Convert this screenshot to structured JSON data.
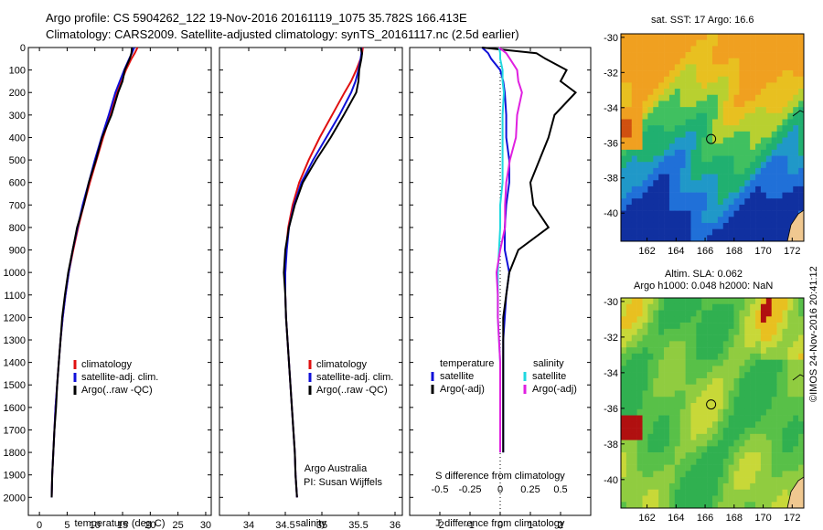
{
  "header": {
    "line1": "Argo profile: CS 5904262_122 19-Nov-2016 20161119_1075 35.782S 166.413E",
    "line2": "Climatology: CARS2009. Satellite-adjusted climatology: synTS_20161117.nc (2.5d earlier)"
  },
  "watermark": "©IMOS 24-Nov-2016 20:41:12",
  "credits": {
    "line1": "Argo Australia",
    "line2": "PI: Susan Wijffels"
  },
  "colors": {
    "climatology": "#e01010",
    "satellite": "#1010d8",
    "argo": "#000000",
    "sal_sat": "#20d8e0",
    "sal_argo": "#e020e0"
  },
  "chart_data": [
    {
      "type": "line",
      "xlabel": "temperature (deg C)",
      "ylabel": "",
      "xlim": [
        -2,
        31
      ],
      "ylim": [
        2080,
        0
      ],
      "y_reversed": true,
      "x_ticks": [
        0,
        5,
        10,
        15,
        20,
        25,
        30
      ],
      "y_ticks": [
        0,
        100,
        200,
        300,
        400,
        500,
        600,
        700,
        800,
        900,
        1000,
        1100,
        1200,
        1300,
        1400,
        1500,
        1600,
        1700,
        1800,
        1900,
        2000
      ],
      "legend": [
        "climatology",
        "satellite-adj. clim.",
        "Argo(..raw -QC)"
      ],
      "legend_position": "center",
      "depth": [
        0,
        25,
        50,
        100,
        150,
        200,
        300,
        400,
        500,
        600,
        700,
        800,
        900,
        1000,
        1100,
        1200,
        1300,
        1400,
        1500,
        1600,
        1700,
        1800,
        1900,
        2000
      ],
      "series": [
        {
          "name": "climatology",
          "color": "#e01010",
          "values": [
            17.7,
            17.2,
            16.6,
            15.6,
            14.8,
            14.0,
            12.8,
            11.5,
            10.3,
            9.1,
            8.0,
            7.0,
            6.1,
            5.3,
            4.7,
            4.2,
            3.8,
            3.5,
            3.2,
            2.9,
            2.7,
            2.5,
            2.3,
            2.2
          ]
        },
        {
          "name": "satellite-adj. clim.",
          "color": "#1010d8",
          "values": [
            17.1,
            16.7,
            16.2,
            15.3,
            14.5,
            13.7,
            12.5,
            11.2,
            10.0,
            8.9,
            7.8,
            6.9,
            6.0,
            5.3,
            4.7,
            4.2,
            3.8,
            3.5,
            3.2,
            2.9,
            2.7,
            2.5,
            2.3,
            2.2
          ]
        },
        {
          "name": "Argo(..raw -QC)",
          "color": "#000000",
          "values": [
            16.7,
            16.6,
            16.3,
            15.4,
            15.0,
            14.2,
            13.0,
            11.3,
            10.2,
            8.9,
            8.0,
            6.8,
            6.0,
            5.2,
            4.6,
            4.1,
            3.8,
            3.5,
            3.2,
            3.0,
            2.7,
            2.5,
            2.3,
            2.2
          ]
        }
      ]
    },
    {
      "type": "line",
      "xlabel": "salinity",
      "ylabel": "",
      "xlim": [
        33.6,
        36.1
      ],
      "ylim": [
        2080,
        0
      ],
      "y_reversed": true,
      "x_ticks": [
        34,
        34.5,
        35,
        35.5,
        36
      ],
      "legend": [
        "climatology",
        "satellite-adj. clim.",
        "Argo(..raw -QC)"
      ],
      "legend_position": "center-right",
      "depth": [
        0,
        25,
        50,
        100,
        150,
        200,
        300,
        400,
        500,
        600,
        700,
        800,
        900,
        1000,
        1100,
        1200,
        1300,
        1400,
        1500,
        1600,
        1700,
        1800,
        1900,
        2000
      ],
      "series": [
        {
          "name": "climatology",
          "color": "#e01010",
          "values": [
            35.56,
            35.55,
            35.53,
            35.47,
            35.4,
            35.31,
            35.14,
            34.97,
            34.82,
            34.69,
            34.6,
            34.54,
            34.51,
            34.5,
            34.5,
            34.51,
            34.53,
            34.55,
            34.57,
            34.59,
            34.61,
            34.63,
            34.64,
            34.66
          ]
        },
        {
          "name": "satellite-adj. clim.",
          "color": "#1010d8",
          "values": [
            35.54,
            35.54,
            35.53,
            35.5,
            35.46,
            35.4,
            35.24,
            35.06,
            34.88,
            34.72,
            34.62,
            34.55,
            34.52,
            34.5,
            34.5,
            34.51,
            34.53,
            34.55,
            34.57,
            34.59,
            34.61,
            34.63,
            34.64,
            34.66
          ]
        },
        {
          "name": "Argo(..raw -QC)",
          "color": "#000000",
          "values": [
            35.53,
            35.55,
            35.54,
            35.51,
            35.5,
            35.47,
            35.3,
            35.12,
            34.92,
            34.74,
            34.63,
            34.55,
            34.5,
            34.48,
            34.5,
            34.51,
            34.53,
            34.55,
            34.57,
            34.59,
            34.61,
            34.63,
            34.64,
            34.66
          ]
        }
      ]
    },
    {
      "type": "line",
      "xlabel": "T difference from climatology",
      "xlabel_top": "S difference from climatology",
      "xlim": [
        -3,
        3
      ],
      "ylim": [
        2080,
        0
      ],
      "y_reversed": true,
      "x_ticks": [
        -2,
        -1,
        0,
        1,
        2
      ],
      "x_tick_labels_bottom": [
        "-2",
        "-1",
        "0",
        "1",
        "2"
      ],
      "x_tick_labels_top": [
        "-0.5",
        "-0.25",
        "0",
        "0.25",
        "0.5"
      ],
      "legend_groups": [
        {
          "title": "temperature",
          "items": [
            "satellite",
            "Argo(-adj)"
          ]
        },
        {
          "title": "salinity",
          "items": [
            "satellite",
            "Argo(-adj)"
          ]
        }
      ],
      "legend_position": "bottom",
      "depth": [
        0,
        25,
        50,
        100,
        150,
        200,
        300,
        400,
        500,
        600,
        700,
        800,
        900,
        1000,
        1100,
        1200,
        1300,
        1400,
        1500,
        1600,
        1700,
        1800
      ],
      "series": [
        {
          "name": "temperature satellite",
          "color": "#1010d8",
          "values": [
            -0.6,
            -0.4,
            -0.3,
            0.0,
            0.1,
            0.15,
            0.2,
            0.2,
            0.3,
            0.3,
            0.2,
            0.15,
            0.15,
            0.3,
            0.2,
            0.15,
            0.1,
            0.1,
            0.1,
            0.1,
            0.1,
            0.1
          ]
        },
        {
          "name": "temperature Argo(-adj)",
          "color": "#000000",
          "values": [
            -0.6,
            1.2,
            1.5,
            2.2,
            2.0,
            2.5,
            1.8,
            1.6,
            1.3,
            1.0,
            1.1,
            1.6,
            0.6,
            0.3,
            0.2,
            0.1,
            0.1,
            0.1,
            0.1,
            0.1,
            0.1,
            0.1
          ]
        },
        {
          "name": "salinity satellite",
          "color": "#20d8e0",
          "values": [
            -0.01,
            0.0,
            0.0,
            0.02,
            0.02,
            0.03,
            0.02,
            0.02,
            0.02,
            0.02,
            0.0,
            0.0,
            -0.01,
            -0.02,
            -0.02,
            -0.02,
            -0.01,
            0.0,
            0.0,
            0.0,
            0.0,
            0.0
          ]
        },
        {
          "name": "salinity Argo(-adj)",
          "color": "#e020e0",
          "values": [
            -0.01,
            0.05,
            0.08,
            0.14,
            0.15,
            0.18,
            0.14,
            0.13,
            0.08,
            0.05,
            0.04,
            0.04,
            0.0,
            -0.03,
            -0.02,
            -0.02,
            -0.01,
            0.0,
            0.0,
            0.0,
            0.0,
            0.0
          ]
        }
      ]
    },
    {
      "type": "heatmap",
      "title": "sat. SST: 17 Argo: 16.6",
      "x_ticks": [
        162,
        164,
        166,
        168,
        170,
        172
      ],
      "y_ticks": [
        -30,
        -32,
        -34,
        -36,
        -38,
        -40
      ],
      "xlim": [
        160.2,
        172.8
      ],
      "ylim": [
        -41.6,
        -29.8
      ],
      "marker": {
        "lon": 166.413,
        "lat": -35.782
      }
    },
    {
      "type": "heatmap",
      "title": "Altim. SLA: 0.062",
      "subtitle": "Argo h1000: 0.048 h2000: NaN",
      "x_ticks": [
        162,
        164,
        166,
        168,
        170,
        172
      ],
      "y_ticks": [
        -30,
        -32,
        -34,
        -36,
        -38,
        -40
      ],
      "xlim": [
        160.2,
        172.8
      ],
      "ylim": [
        -41.6,
        -29.8
      ],
      "marker": {
        "lon": 166.413,
        "lat": -35.782
      }
    }
  ]
}
